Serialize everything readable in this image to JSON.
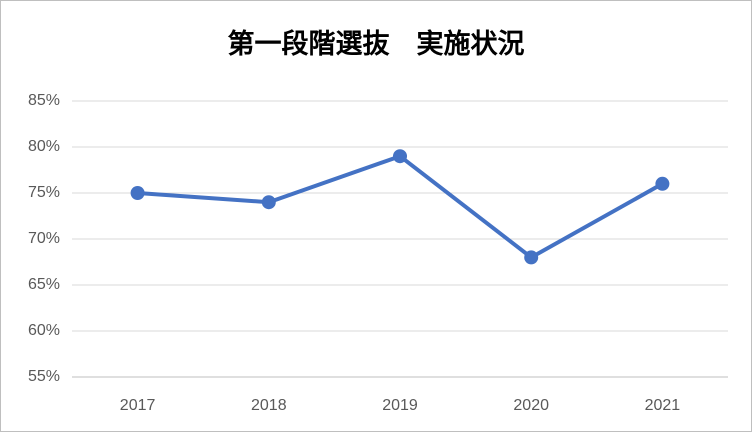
{
  "chart_data": {
    "type": "line",
    "title": "第一段階選抜　実施状況",
    "categories": [
      "2017",
      "2018",
      "2019",
      "2020",
      "2021"
    ],
    "values": [
      75,
      74,
      79,
      68,
      76
    ],
    "color": "#4472c4",
    "ylim": [
      55,
      85
    ],
    "yticks": [
      {
        "value": 55,
        "label": "55%"
      },
      {
        "value": 60,
        "label": "60%"
      },
      {
        "value": 65,
        "label": "65%"
      },
      {
        "value": 70,
        "label": "70%"
      },
      {
        "value": 75,
        "label": "75%"
      },
      {
        "value": 80,
        "label": "80%"
      },
      {
        "value": 85,
        "label": "85%"
      }
    ],
    "grid": true
  }
}
